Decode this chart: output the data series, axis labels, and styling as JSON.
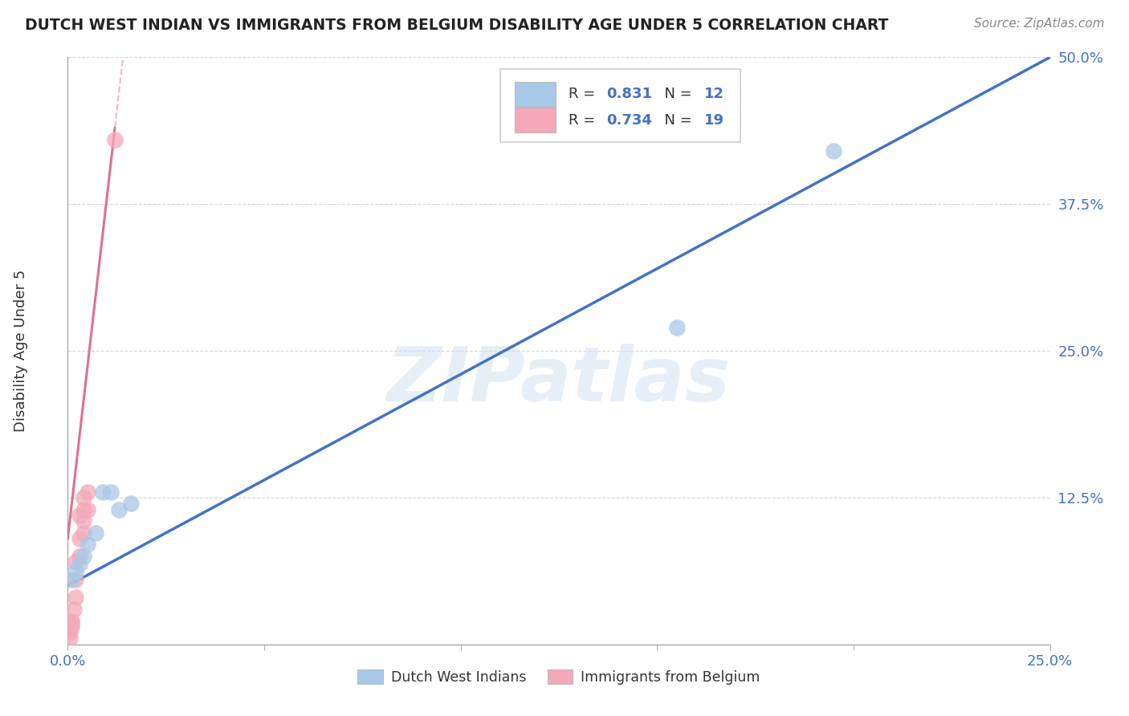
{
  "title": "DUTCH WEST INDIAN VS IMMIGRANTS FROM BELGIUM DISABILITY AGE UNDER 5 CORRELATION CHART",
  "source_text": "Source: ZipAtlas.com",
  "ylabel": "Disability Age Under 5",
  "xlim": [
    0.0,
    0.25
  ],
  "ylim": [
    0.0,
    0.5
  ],
  "xticks": [
    0.0,
    0.05,
    0.1,
    0.15,
    0.2,
    0.25
  ],
  "xtick_labels": [
    "0.0%",
    "",
    "",
    "",
    "",
    "25.0%"
  ],
  "ytick_labels": [
    "",
    "12.5%",
    "25.0%",
    "37.5%",
    "50.0%"
  ],
  "yticks": [
    0.0,
    0.125,
    0.25,
    0.375,
    0.5
  ],
  "blue_R": 0.831,
  "blue_N": 12,
  "pink_R": 0.734,
  "pink_N": 19,
  "blue_color": "#a8c8e8",
  "pink_color": "#f4a8b8",
  "blue_line_color": "#4472c4",
  "pink_line_color": "#e07090",
  "blue_scatter_x": [
    0.001,
    0.002,
    0.003,
    0.004,
    0.005,
    0.007,
    0.009,
    0.011,
    0.013,
    0.016,
    0.195,
    0.155
  ],
  "blue_scatter_y": [
    0.055,
    0.062,
    0.068,
    0.075,
    0.085,
    0.095,
    0.13,
    0.13,
    0.115,
    0.12,
    0.42,
    0.27
  ],
  "pink_scatter_x": [
    0.0005,
    0.0005,
    0.001,
    0.001,
    0.001,
    0.0015,
    0.002,
    0.002,
    0.002,
    0.003,
    0.003,
    0.003,
    0.004,
    0.004,
    0.004,
    0.004,
    0.005,
    0.005,
    0.012
  ],
  "pink_scatter_y": [
    0.005,
    0.01,
    0.015,
    0.018,
    0.02,
    0.03,
    0.04,
    0.055,
    0.07,
    0.075,
    0.09,
    0.11,
    0.095,
    0.105,
    0.115,
    0.125,
    0.115,
    0.13,
    0.43
  ],
  "blue_line_x0": 0.0,
  "blue_line_y0": 0.05,
  "blue_line_x1": 0.25,
  "blue_line_y1": 0.5,
  "pink_line_x0": 0.0,
  "pink_line_y0": 0.09,
  "pink_line_x1": 0.012,
  "pink_line_y1": 0.44,
  "watermark": "ZIPatlas",
  "background_color": "#ffffff",
  "grid_color": "#cccccc",
  "legend_bottom_labels": [
    "Dutch West Indians",
    "Immigrants from Belgium"
  ]
}
